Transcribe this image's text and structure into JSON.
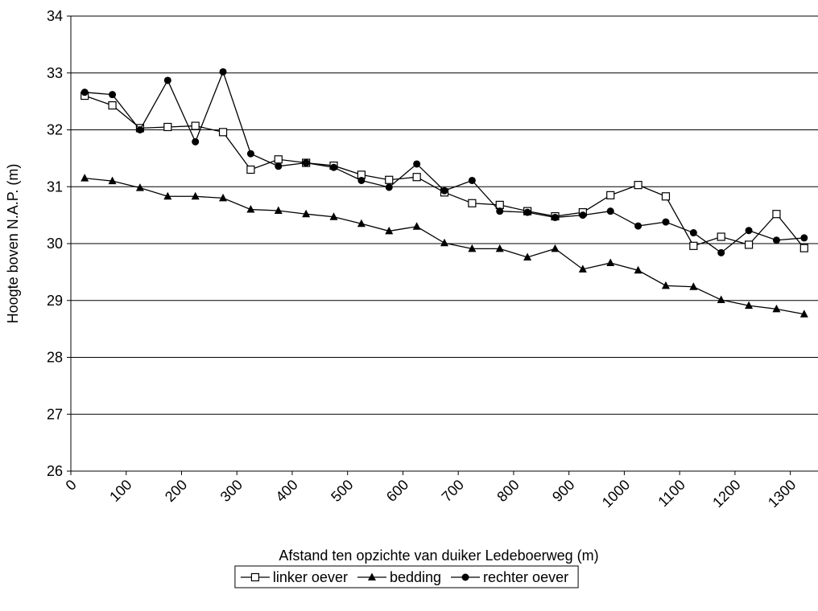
{
  "chart_data": {
    "type": "line",
    "x_label": "Afstand ten opzichte van duiker Ledeboerweg (m)",
    "y_label": "Hoogte boven N.A.P. (m)",
    "x": [
      25,
      75,
      125,
      175,
      225,
      275,
      325,
      375,
      425,
      475,
      525,
      575,
      625,
      675,
      725,
      775,
      825,
      875,
      925,
      975,
      1025,
      1075,
      1125,
      1175,
      1225,
      1275,
      1325
    ],
    "series": [
      {
        "name": "linker oever",
        "color": "#000000",
        "marker": "square-open",
        "values": [
          32.6,
          32.43,
          32.03,
          32.05,
          32.07,
          31.96,
          31.3,
          31.48,
          31.42,
          31.37,
          31.21,
          31.12,
          31.17,
          30.9,
          30.71,
          30.68,
          30.57,
          30.48,
          30.55,
          30.85,
          31.03,
          30.83,
          29.96,
          30.12,
          29.98,
          30.52,
          29.92
        ]
      },
      {
        "name": "bedding",
        "color": "#000000",
        "marker": "triangle",
        "values": [
          31.15,
          31.1,
          30.98,
          30.83,
          30.83,
          30.8,
          30.6,
          30.58,
          30.52,
          30.47,
          30.35,
          30.22,
          30.3,
          30.01,
          29.91,
          29.91,
          29.76,
          29.91,
          29.55,
          29.66,
          29.53,
          29.26,
          29.24,
          29.01,
          28.91,
          28.85,
          28.76
        ]
      },
      {
        "name": "rechter oever",
        "color": "#000000",
        "marker": "circle",
        "values": [
          32.66,
          32.62,
          32.0,
          32.87,
          31.79,
          33.02,
          31.58,
          31.36,
          31.42,
          31.34,
          31.11,
          30.99,
          31.4,
          30.93,
          31.11,
          30.57,
          30.55,
          30.46,
          30.5,
          30.57,
          30.31,
          30.38,
          30.19,
          29.84,
          30.23,
          30.06,
          30.1
        ]
      }
    ],
    "xlim": [
      0,
      1350
    ],
    "xticks": [
      0,
      100,
      200,
      300,
      400,
      500,
      600,
      700,
      800,
      900,
      1000,
      1100,
      1200,
      1300
    ],
    "ylim": [
      26,
      34
    ],
    "yticks": [
      26,
      27,
      28,
      29,
      30,
      31,
      32,
      33,
      34
    ],
    "grid": true
  }
}
